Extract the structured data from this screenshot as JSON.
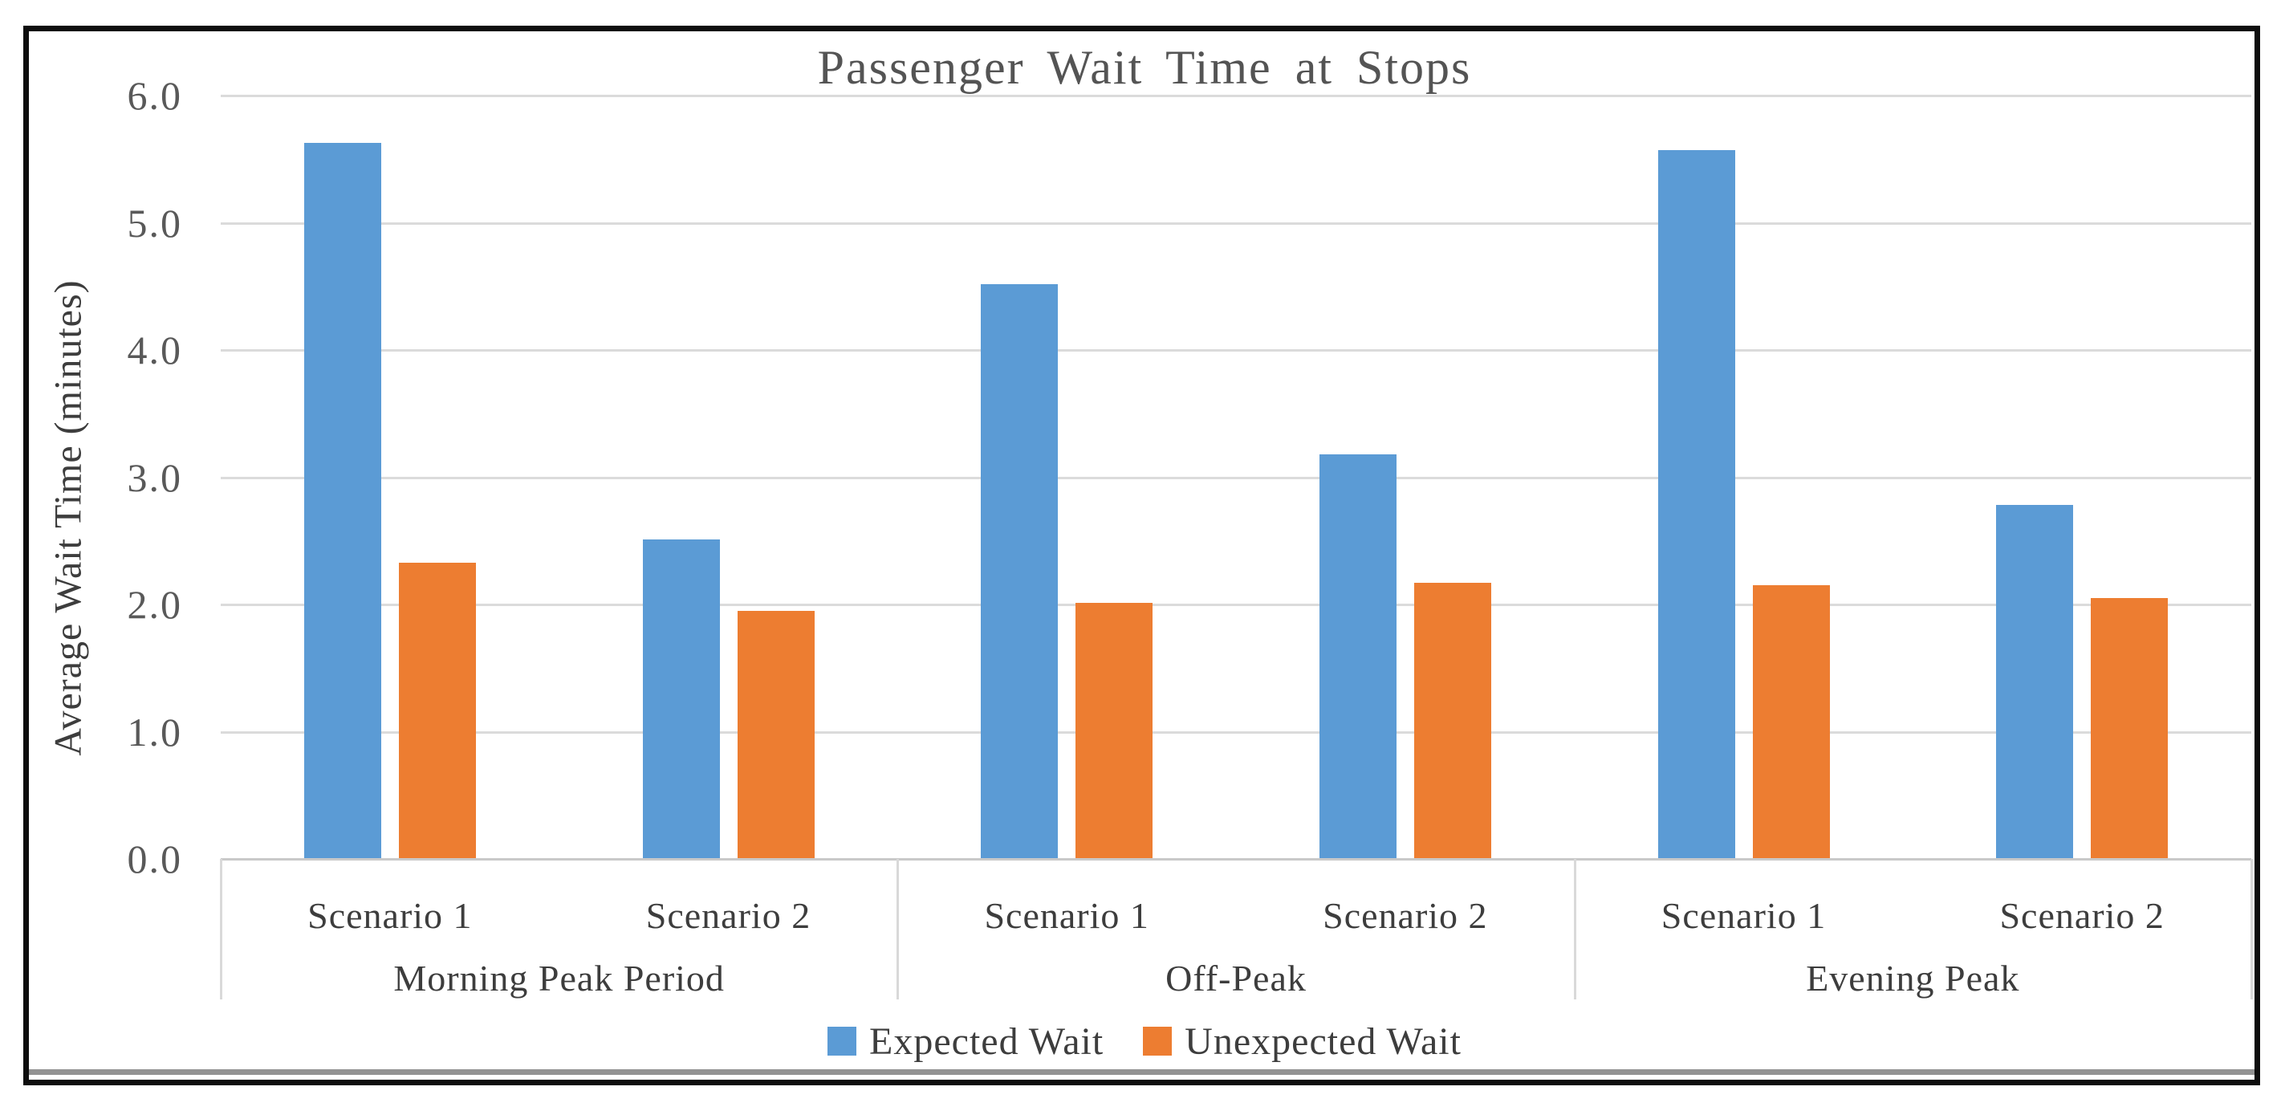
{
  "chart_data": {
    "type": "bar",
    "title": "Passenger Wait Time at Stops",
    "xlabel": "",
    "ylabel": "Average Wait Time (minutes)",
    "ylim": [
      0,
      6
    ],
    "ytick_step": 1.0,
    "ytick_labels": [
      "0.0",
      "1.0",
      "2.0",
      "3.0",
      "4.0",
      "5.0",
      "6.0"
    ],
    "grid": true,
    "legend_position": "bottom",
    "groups": [
      {
        "label": "Morning Peak Period",
        "categories": [
          "Scenario 1",
          "Scenario 2"
        ]
      },
      {
        "label": "Off-Peak",
        "categories": [
          "Scenario 1",
          "Scenario 2"
        ]
      },
      {
        "label": "Evening Peak",
        "categories": [
          "Scenario 1",
          "Scenario 2"
        ]
      }
    ],
    "series": [
      {
        "name": "Expected Wait",
        "color": "#5B9BD5",
        "values": [
          5.63,
          2.51,
          4.52,
          3.18,
          5.57,
          2.78
        ]
      },
      {
        "name": "Unexpected Wait",
        "color": "#ED7D31",
        "values": [
          2.33,
          1.95,
          2.01,
          2.17,
          2.15,
          2.05
        ]
      }
    ]
  },
  "frame": {
    "border_color": "#0d0d0d",
    "background": "#ffffff"
  }
}
